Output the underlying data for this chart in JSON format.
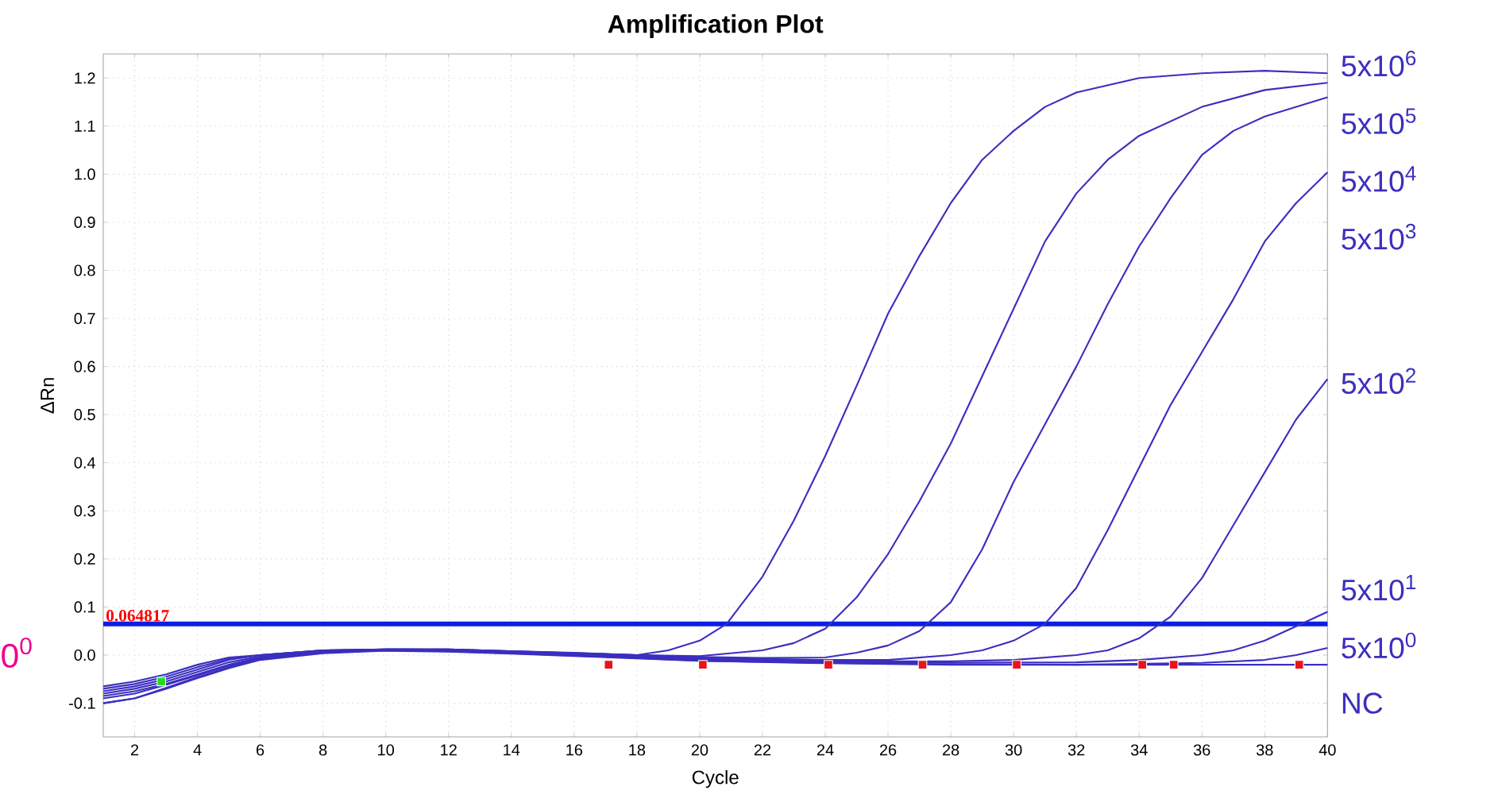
{
  "chart_data": {
    "type": "line",
    "title": "Amplification Plot",
    "xlabel": "Cycle",
    "ylabel": "ΔRn",
    "xlim": [
      1,
      40
    ],
    "ylim": [
      -0.17,
      1.25
    ],
    "xticks": [
      2,
      4,
      6,
      8,
      10,
      12,
      14,
      16,
      18,
      20,
      22,
      24,
      26,
      28,
      30,
      32,
      34,
      36,
      38,
      40
    ],
    "yticks": [
      -0.1,
      {
        "value": 0,
        "label": "0.0"
      },
      0.1,
      0.2,
      0.3,
      0.4,
      0.5,
      0.6,
      0.7,
      0.8,
      0.9,
      {
        "value": 1,
        "label": "1.0"
      },
      1.1,
      1.2
    ],
    "grid": true,
    "line_style": "solid",
    "ref_lines": [
      {
        "axis": "y",
        "value": 0.064817,
        "label": "0.064817",
        "color": "#0a1ee6"
      }
    ],
    "annotations": [
      "0$^{0}$"
    ],
    "series": [
      {
        "name": "5x10$^{6}$",
        "color": "#3b2fbf",
        "x": [
          1,
          2,
          3,
          4,
          5,
          6,
          8,
          10,
          12,
          14,
          16,
          18,
          19,
          20,
          20.86,
          22,
          23,
          24,
          25,
          26,
          27,
          28,
          29,
          30,
          31,
          32,
          34,
          36,
          38,
          40
        ],
        "values": [
          -0.065,
          -0.055,
          -0.04,
          -0.02,
          -0.005,
          0.0,
          0.01,
          0.012,
          0.012,
          0.008,
          0.005,
          0.0,
          0.01,
          0.03,
          0.065,
          0.163,
          0.28,
          0.414,
          0.56,
          0.71,
          0.83,
          0.94,
          1.03,
          1.09,
          1.14,
          1.17,
          1.2,
          1.21,
          1.215,
          1.21
        ]
      },
      {
        "name": "5x10$^{5}$",
        "color": "#3b2fbf",
        "x": [
          1,
          2,
          3,
          4,
          5,
          6,
          8,
          10,
          12,
          14,
          16,
          18,
          20,
          22,
          23,
          24,
          25,
          26,
          27,
          28,
          29,
          30,
          31,
          32,
          33,
          34,
          36,
          38,
          40
        ],
        "values": [
          -0.07,
          -0.06,
          -0.045,
          -0.025,
          -0.008,
          0.0,
          0.01,
          0.012,
          0.012,
          0.008,
          0.004,
          0.0,
          -0.002,
          0.01,
          0.025,
          0.055,
          0.12,
          0.21,
          0.32,
          0.44,
          0.58,
          0.72,
          0.86,
          0.96,
          1.03,
          1.08,
          1.14,
          1.175,
          1.19
        ]
      },
      {
        "name": "5x10$^{4}$",
        "color": "#3b2fbf",
        "x": [
          1,
          2,
          3,
          4,
          5,
          6,
          8,
          10,
          12,
          14,
          16,
          18,
          20,
          22,
          24,
          25,
          26,
          27,
          28,
          29,
          30,
          31,
          32,
          33,
          34,
          35,
          36,
          37,
          38,
          40
        ],
        "values": [
          -0.075,
          -0.065,
          -0.05,
          -0.03,
          -0.01,
          0.0,
          0.01,
          0.012,
          0.012,
          0.008,
          0.004,
          0.0,
          -0.004,
          -0.006,
          -0.005,
          0.005,
          0.02,
          0.05,
          0.11,
          0.22,
          0.36,
          0.48,
          0.6,
          0.73,
          0.85,
          0.95,
          1.04,
          1.09,
          1.12,
          1.16
        ]
      },
      {
        "name": "5x10$^{3}$",
        "color": "#3b2fbf",
        "x": [
          1,
          2,
          3,
          4,
          5,
          6,
          8,
          10,
          12,
          14,
          16,
          18,
          20,
          22,
          24,
          26,
          28,
          29,
          30,
          31,
          32,
          33,
          34,
          35,
          36,
          37,
          38,
          39,
          40
        ],
        "values": [
          -0.08,
          -0.07,
          -0.055,
          -0.035,
          -0.015,
          -0.003,
          0.008,
          0.012,
          0.011,
          0.007,
          0.003,
          -0.002,
          -0.006,
          -0.008,
          -0.01,
          -0.01,
          0.0,
          0.01,
          0.03,
          0.065,
          0.14,
          0.26,
          0.39,
          0.52,
          0.63,
          0.74,
          0.86,
          0.94,
          1.004
        ]
      },
      {
        "name": "5x10$^{2}$",
        "color": "#3b2fbf",
        "x": [
          1,
          2,
          3,
          4,
          5,
          6,
          8,
          10,
          12,
          14,
          16,
          18,
          20,
          22,
          24,
          26,
          28,
          30,
          32,
          33,
          34,
          35,
          36,
          37,
          38,
          39,
          40
        ],
        "values": [
          -0.085,
          -0.075,
          -0.06,
          -0.04,
          -0.02,
          -0.005,
          0.007,
          0.011,
          0.01,
          0.006,
          0.002,
          -0.003,
          -0.008,
          -0.01,
          -0.012,
          -0.013,
          -0.013,
          -0.01,
          0.0,
          0.01,
          0.035,
          0.08,
          0.16,
          0.27,
          0.38,
          0.49,
          0.574
        ]
      },
      {
        "name": "5x10$^{1}$",
        "color": "#3b2fbf",
        "x": [
          1,
          2,
          3,
          4,
          5,
          6,
          8,
          10,
          12,
          14,
          16,
          18,
          20,
          24,
          28,
          32,
          34,
          36,
          37,
          38,
          39,
          40
        ],
        "values": [
          -0.09,
          -0.08,
          -0.062,
          -0.042,
          -0.022,
          -0.007,
          0.006,
          0.01,
          0.009,
          0.005,
          0.0,
          -0.005,
          -0.01,
          -0.014,
          -0.016,
          -0.015,
          -0.01,
          0.0,
          0.01,
          0.03,
          0.06,
          0.09
        ]
      },
      {
        "name": "5x10$^{0}$",
        "color": "#3b2fbf",
        "x": [
          1,
          2,
          3,
          4,
          5,
          6,
          8,
          10,
          12,
          14,
          16,
          18,
          20,
          24,
          28,
          32,
          36,
          38,
          39,
          40
        ],
        "values": [
          -0.1,
          -0.09,
          -0.068,
          -0.046,
          -0.025,
          -0.009,
          0.005,
          0.01,
          0.008,
          0.004,
          -0.001,
          -0.006,
          -0.012,
          -0.017,
          -0.02,
          -0.02,
          -0.016,
          -0.01,
          0.0,
          0.015
        ]
      },
      {
        "name": "NC",
        "color": "#3b2fbf",
        "x": [
          1,
          2,
          3,
          4,
          5,
          6,
          8,
          10,
          12,
          14,
          16,
          18,
          20,
          24,
          28,
          32,
          36,
          40
        ],
        "values": [
          -0.1,
          -0.09,
          -0.07,
          -0.048,
          -0.027,
          -0.01,
          0.004,
          0.009,
          0.007,
          0.003,
          -0.002,
          -0.007,
          -0.012,
          -0.016,
          -0.019,
          -0.02,
          -0.02,
          -0.02
        ]
      },
      {
        "type": "scatter",
        "marker": "square",
        "color": "#e8141c",
        "x": [
          17.1,
          20.1,
          24.1,
          27.1,
          30.1,
          34.1,
          35.1,
          39.1
        ],
        "values": [
          -0.02,
          -0.02,
          -0.02,
          -0.02,
          -0.02,
          -0.02,
          -0.02,
          -0.02
        ]
      },
      {
        "type": "scatter",
        "marker": "square",
        "color": "#22dd22",
        "x": [
          2.85
        ],
        "values": [
          -0.055
        ]
      }
    ]
  }
}
